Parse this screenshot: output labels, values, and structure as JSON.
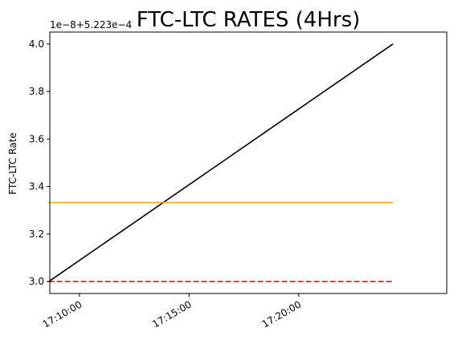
{
  "chart_data": {
    "type": "line",
    "title": "FTC-LTC RATES (4Hrs)",
    "xlabel": "",
    "ylabel": "FTC-LTC Rate",
    "offset_label": "1e−8+5.223e−4",
    "x_domain_minutes": [
      -1.35,
      16.75
    ],
    "ylim": [
      2.95,
      4.05
    ],
    "x_ticks": [
      {
        "minute": 0,
        "label": "17:10:00"
      },
      {
        "minute": 5,
        "label": "17:15:00"
      },
      {
        "minute": 10,
        "label": "17:20:00"
      }
    ],
    "y_ticks": [
      {
        "value": 3.0,
        "label": "3.0"
      },
      {
        "value": 3.2,
        "label": "3.2"
      },
      {
        "value": 3.4,
        "label": "3.4"
      },
      {
        "value": 3.6,
        "label": "3.6"
      },
      {
        "value": 3.8,
        "label": "3.8"
      },
      {
        "value": 4.0,
        "label": "4.0"
      }
    ],
    "grid": false,
    "series": [
      {
        "color": "#000000",
        "style": "solid",
        "x": [
          -1.4,
          14.3
        ],
        "y": [
          3.0,
          4.0
        ]
      },
      {
        "color": "#ffa500",
        "style": "solid",
        "x": [
          -1.4,
          14.3
        ],
        "y": [
          3.333,
          3.333
        ]
      },
      {
        "color": "#ff0000",
        "style": "dashed",
        "x": [
          -1.4,
          14.3
        ],
        "y": [
          3.0,
          3.0
        ]
      }
    ]
  }
}
